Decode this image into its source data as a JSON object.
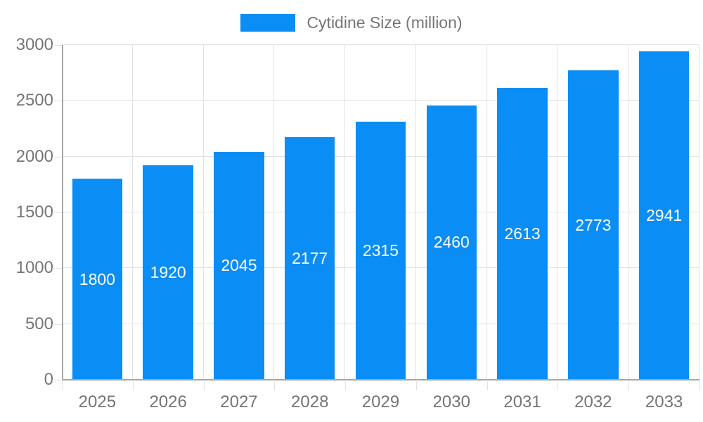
{
  "legend": {
    "label": "Cytidine Size (million)"
  },
  "chart_data": {
    "type": "bar",
    "title": "",
    "series_name": "Cytidine Size (million)",
    "categories": [
      "2025",
      "2026",
      "2027",
      "2028",
      "2029",
      "2030",
      "2031",
      "2032",
      "2033"
    ],
    "values": [
      1800,
      1920,
      2045,
      2177,
      2315,
      2460,
      2613,
      2773,
      2941
    ],
    "xlabel": "",
    "ylabel": "",
    "ylim": [
      0,
      3000
    ],
    "ytick_interval": 500,
    "ytick_labels": [
      "0",
      "500",
      "1000",
      "1500",
      "2000",
      "2500",
      "3000"
    ],
    "grid": true,
    "legend_position": "top-center",
    "bar_label_position": "middle"
  },
  "colors": {
    "background": "#ffffff",
    "bar": "#0a8df4",
    "bar_label": "#ffffff",
    "axis_line": "#a6a6a6",
    "gridline": "#e2e2e2",
    "axis_text": "#757575"
  }
}
